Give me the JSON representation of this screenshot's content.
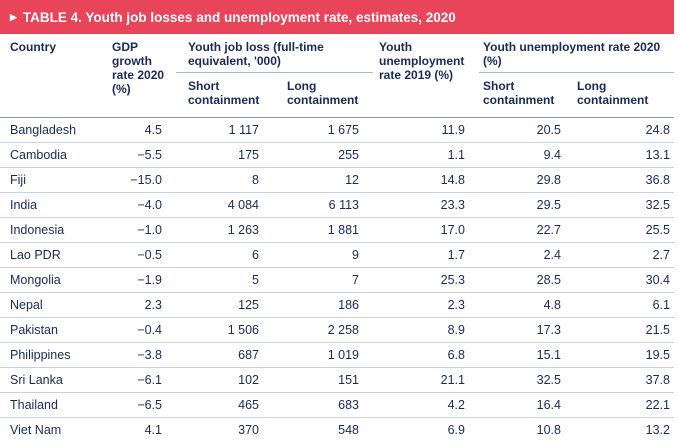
{
  "table_title": "TABLE 4. Youth job losses and unemployment rate, estimates, 2020",
  "headers": {
    "country": "Country",
    "gdp": "GDP growth rate 2020 (%)",
    "job_loss_group": "Youth job loss (full-time equivalent, '000)",
    "unemp_2019": "Youth unemployment rate 2019 (%)",
    "unemp_2020_group": "Youth unemployment rate 2020 (%)",
    "short": "Short containment",
    "long": "Long containment"
  },
  "rows": [
    {
      "country": "Bangladesh",
      "gdp": "4.5",
      "loss_short": "1 117",
      "loss_long": "1 675",
      "u2019": "11.9",
      "u2020_short": "20.5",
      "u2020_long": "24.8"
    },
    {
      "country": "Cambodia",
      "gdp": "−5.5",
      "loss_short": "175",
      "loss_long": "255",
      "u2019": "1.1",
      "u2020_short": "9.4",
      "u2020_long": "13.1"
    },
    {
      "country": "Fiji",
      "gdp": "−15.0",
      "loss_short": "8",
      "loss_long": "12",
      "u2019": "14.8",
      "u2020_short": "29.8",
      "u2020_long": "36.8"
    },
    {
      "country": "India",
      "gdp": "−4.0",
      "loss_short": "4 084",
      "loss_long": "6 113",
      "u2019": "23.3",
      "u2020_short": "29.5",
      "u2020_long": "32.5"
    },
    {
      "country": "Indonesia",
      "gdp": "−1.0",
      "loss_short": "1 263",
      "loss_long": "1 881",
      "u2019": "17.0",
      "u2020_short": "22.7",
      "u2020_long": "25.5"
    },
    {
      "country": "Lao PDR",
      "gdp": "−0.5",
      "loss_short": "6",
      "loss_long": "9",
      "u2019": "1.7",
      "u2020_short": "2.4",
      "u2020_long": "2.7"
    },
    {
      "country": "Mongolia",
      "gdp": "−1.9",
      "loss_short": "5",
      "loss_long": "7",
      "u2019": "25.3",
      "u2020_short": "28.5",
      "u2020_long": "30.4"
    },
    {
      "country": "Nepal",
      "gdp": "2.3",
      "loss_short": "125",
      "loss_long": "186",
      "u2019": "2.3",
      "u2020_short": "4.8",
      "u2020_long": "6.1"
    },
    {
      "country": "Pakistan",
      "gdp": "−0.4",
      "loss_short": "1 506",
      "loss_long": "2 258",
      "u2019": "8.9",
      "u2020_short": "17.3",
      "u2020_long": "21.5"
    },
    {
      "country": "Philippines",
      "gdp": "−3.8",
      "loss_short": "687",
      "loss_long": "1 019",
      "u2019": "6.8",
      "u2020_short": "15.1",
      "u2020_long": "19.5"
    },
    {
      "country": "Sri Lanka",
      "gdp": "−6.1",
      "loss_short": "102",
      "loss_long": "151",
      "u2019": "21.1",
      "u2020_short": "32.5",
      "u2020_long": "37.8"
    },
    {
      "country": "Thailand",
      "gdp": "−6.5",
      "loss_short": "465",
      "loss_long": "683",
      "u2019": "4.2",
      "u2020_short": "16.4",
      "u2020_long": "22.1"
    },
    {
      "country": "Viet Nam",
      "gdp": "4.1",
      "loss_short": "370",
      "loss_long": "548",
      "u2019": "6.9",
      "u2020_short": "10.8",
      "u2020_long": "13.2"
    }
  ],
  "colors": {
    "title_bar": "#e8445a",
    "text": "#1a2a57",
    "rule": "#c7d0e6"
  }
}
